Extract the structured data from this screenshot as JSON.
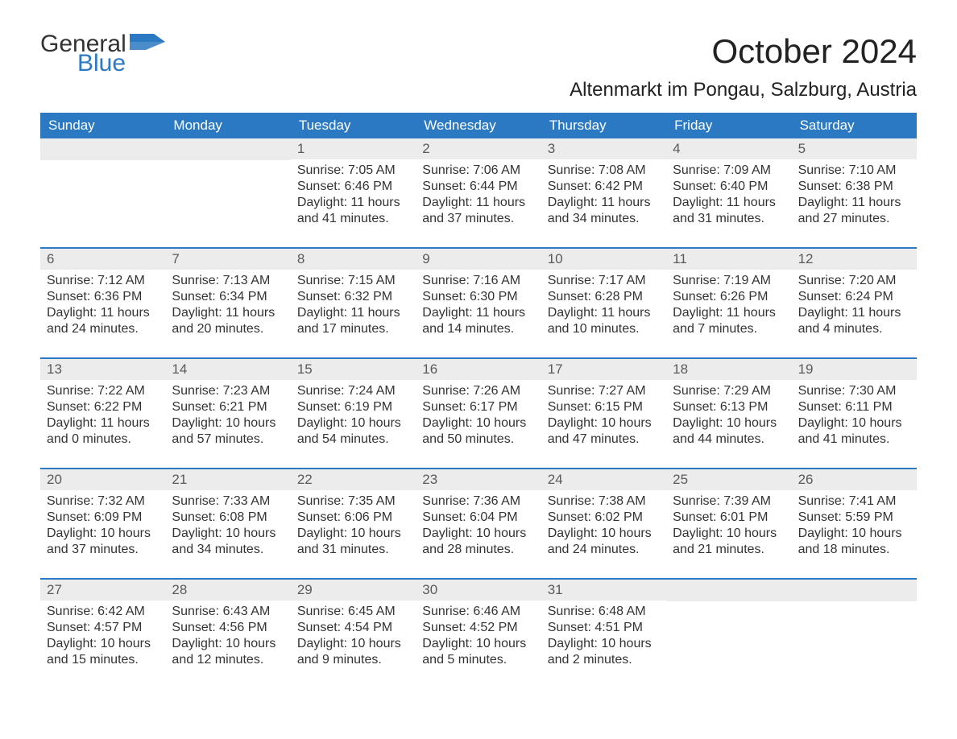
{
  "logo": {
    "word1": "General",
    "word2": "Blue",
    "flag_color": "#2b79c2"
  },
  "title": "October 2024",
  "location": "Altenmarkt im Pongau, Salzburg, Austria",
  "colors": {
    "header_bg": "#2b79c2",
    "header_text": "#ffffff",
    "daynum_bg": "#ececec",
    "daynum_text": "#5a5a5a",
    "body_text": "#333333",
    "week_border": "#2b79c2",
    "page_bg": "#ffffff"
  },
  "typography": {
    "title_fontsize": 42,
    "location_fontsize": 24,
    "header_fontsize": 17,
    "daynum_fontsize": 17,
    "body_fontsize": 16
  },
  "day_names": [
    "Sunday",
    "Monday",
    "Tuesday",
    "Wednesday",
    "Thursday",
    "Friday",
    "Saturday"
  ],
  "weeks": [
    [
      null,
      null,
      {
        "n": "1",
        "sr": "Sunrise: 7:05 AM",
        "ss": "Sunset: 6:46 PM",
        "d1": "Daylight: 11 hours",
        "d2": "and 41 minutes."
      },
      {
        "n": "2",
        "sr": "Sunrise: 7:06 AM",
        "ss": "Sunset: 6:44 PM",
        "d1": "Daylight: 11 hours",
        "d2": "and 37 minutes."
      },
      {
        "n": "3",
        "sr": "Sunrise: 7:08 AM",
        "ss": "Sunset: 6:42 PM",
        "d1": "Daylight: 11 hours",
        "d2": "and 34 minutes."
      },
      {
        "n": "4",
        "sr": "Sunrise: 7:09 AM",
        "ss": "Sunset: 6:40 PM",
        "d1": "Daylight: 11 hours",
        "d2": "and 31 minutes."
      },
      {
        "n": "5",
        "sr": "Sunrise: 7:10 AM",
        "ss": "Sunset: 6:38 PM",
        "d1": "Daylight: 11 hours",
        "d2": "and 27 minutes."
      }
    ],
    [
      {
        "n": "6",
        "sr": "Sunrise: 7:12 AM",
        "ss": "Sunset: 6:36 PM",
        "d1": "Daylight: 11 hours",
        "d2": "and 24 minutes."
      },
      {
        "n": "7",
        "sr": "Sunrise: 7:13 AM",
        "ss": "Sunset: 6:34 PM",
        "d1": "Daylight: 11 hours",
        "d2": "and 20 minutes."
      },
      {
        "n": "8",
        "sr": "Sunrise: 7:15 AM",
        "ss": "Sunset: 6:32 PM",
        "d1": "Daylight: 11 hours",
        "d2": "and 17 minutes."
      },
      {
        "n": "9",
        "sr": "Sunrise: 7:16 AM",
        "ss": "Sunset: 6:30 PM",
        "d1": "Daylight: 11 hours",
        "d2": "and 14 minutes."
      },
      {
        "n": "10",
        "sr": "Sunrise: 7:17 AM",
        "ss": "Sunset: 6:28 PM",
        "d1": "Daylight: 11 hours",
        "d2": "and 10 minutes."
      },
      {
        "n": "11",
        "sr": "Sunrise: 7:19 AM",
        "ss": "Sunset: 6:26 PM",
        "d1": "Daylight: 11 hours",
        "d2": "and 7 minutes."
      },
      {
        "n": "12",
        "sr": "Sunrise: 7:20 AM",
        "ss": "Sunset: 6:24 PM",
        "d1": "Daylight: 11 hours",
        "d2": "and 4 minutes."
      }
    ],
    [
      {
        "n": "13",
        "sr": "Sunrise: 7:22 AM",
        "ss": "Sunset: 6:22 PM",
        "d1": "Daylight: 11 hours",
        "d2": "and 0 minutes."
      },
      {
        "n": "14",
        "sr": "Sunrise: 7:23 AM",
        "ss": "Sunset: 6:21 PM",
        "d1": "Daylight: 10 hours",
        "d2": "and 57 minutes."
      },
      {
        "n": "15",
        "sr": "Sunrise: 7:24 AM",
        "ss": "Sunset: 6:19 PM",
        "d1": "Daylight: 10 hours",
        "d2": "and 54 minutes."
      },
      {
        "n": "16",
        "sr": "Sunrise: 7:26 AM",
        "ss": "Sunset: 6:17 PM",
        "d1": "Daylight: 10 hours",
        "d2": "and 50 minutes."
      },
      {
        "n": "17",
        "sr": "Sunrise: 7:27 AM",
        "ss": "Sunset: 6:15 PM",
        "d1": "Daylight: 10 hours",
        "d2": "and 47 minutes."
      },
      {
        "n": "18",
        "sr": "Sunrise: 7:29 AM",
        "ss": "Sunset: 6:13 PM",
        "d1": "Daylight: 10 hours",
        "d2": "and 44 minutes."
      },
      {
        "n": "19",
        "sr": "Sunrise: 7:30 AM",
        "ss": "Sunset: 6:11 PM",
        "d1": "Daylight: 10 hours",
        "d2": "and 41 minutes."
      }
    ],
    [
      {
        "n": "20",
        "sr": "Sunrise: 7:32 AM",
        "ss": "Sunset: 6:09 PM",
        "d1": "Daylight: 10 hours",
        "d2": "and 37 minutes."
      },
      {
        "n": "21",
        "sr": "Sunrise: 7:33 AM",
        "ss": "Sunset: 6:08 PM",
        "d1": "Daylight: 10 hours",
        "d2": "and 34 minutes."
      },
      {
        "n": "22",
        "sr": "Sunrise: 7:35 AM",
        "ss": "Sunset: 6:06 PM",
        "d1": "Daylight: 10 hours",
        "d2": "and 31 minutes."
      },
      {
        "n": "23",
        "sr": "Sunrise: 7:36 AM",
        "ss": "Sunset: 6:04 PM",
        "d1": "Daylight: 10 hours",
        "d2": "and 28 minutes."
      },
      {
        "n": "24",
        "sr": "Sunrise: 7:38 AM",
        "ss": "Sunset: 6:02 PM",
        "d1": "Daylight: 10 hours",
        "d2": "and 24 minutes."
      },
      {
        "n": "25",
        "sr": "Sunrise: 7:39 AM",
        "ss": "Sunset: 6:01 PM",
        "d1": "Daylight: 10 hours",
        "d2": "and 21 minutes."
      },
      {
        "n": "26",
        "sr": "Sunrise: 7:41 AM",
        "ss": "Sunset: 5:59 PM",
        "d1": "Daylight: 10 hours",
        "d2": "and 18 minutes."
      }
    ],
    [
      {
        "n": "27",
        "sr": "Sunrise: 6:42 AM",
        "ss": "Sunset: 4:57 PM",
        "d1": "Daylight: 10 hours",
        "d2": "and 15 minutes."
      },
      {
        "n": "28",
        "sr": "Sunrise: 6:43 AM",
        "ss": "Sunset: 4:56 PM",
        "d1": "Daylight: 10 hours",
        "d2": "and 12 minutes."
      },
      {
        "n": "29",
        "sr": "Sunrise: 6:45 AM",
        "ss": "Sunset: 4:54 PM",
        "d1": "Daylight: 10 hours",
        "d2": "and 9 minutes."
      },
      {
        "n": "30",
        "sr": "Sunrise: 6:46 AM",
        "ss": "Sunset: 4:52 PM",
        "d1": "Daylight: 10 hours",
        "d2": "and 5 minutes."
      },
      {
        "n": "31",
        "sr": "Sunrise: 6:48 AM",
        "ss": "Sunset: 4:51 PM",
        "d1": "Daylight: 10 hours",
        "d2": "and 2 minutes."
      },
      null,
      null
    ]
  ]
}
